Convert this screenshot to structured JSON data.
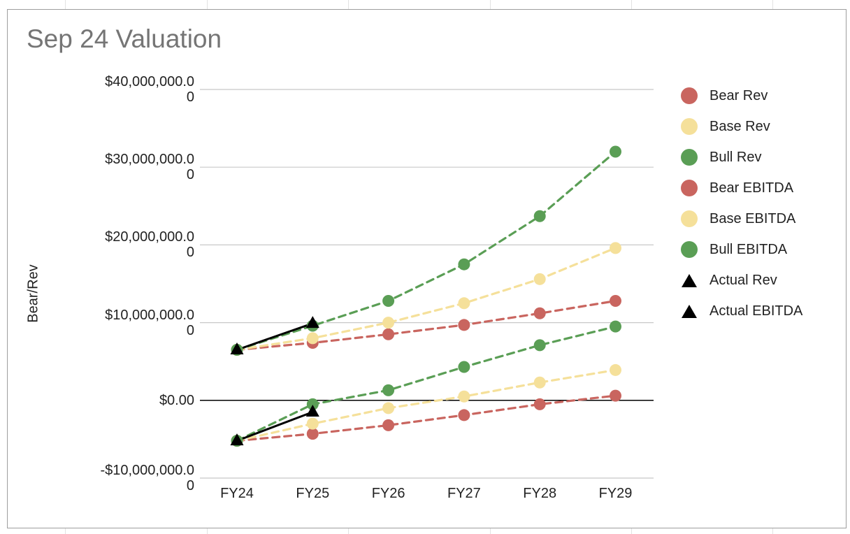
{
  "colors": {
    "bear": "#c9655f",
    "base": "#f5e09a",
    "bull": "#5a9e55",
    "actual": "#000000",
    "gridline": "#c8c8c8",
    "zeroline": "#000000"
  },
  "chart_data": {
    "type": "line",
    "title": "Sep 24 Valuation",
    "xlabel": "",
    "ylabel": "Bear/Rev",
    "categories": [
      "FY24",
      "FY25",
      "FY26",
      "FY27",
      "FY28",
      "FY29"
    ],
    "ylim": [
      -10000000,
      40000000
    ],
    "y_ticks": [
      {
        "value": 40000000,
        "line1": "$40,000,000.0",
        "line2": "0"
      },
      {
        "value": 30000000,
        "line1": "$30,000,000.0",
        "line2": "0"
      },
      {
        "value": 20000000,
        "line1": "$20,000,000.0",
        "line2": "0"
      },
      {
        "value": 10000000,
        "line1": "$10,000,000.0",
        "line2": "0"
      },
      {
        "value": 0,
        "line1": "$0.00",
        "line2": ""
      },
      {
        "value": -10000000,
        "line1": "-$10,000,000.0",
        "line2": "0"
      }
    ],
    "grid": true,
    "legend_position": "right",
    "series": [
      {
        "name": "Bear Rev",
        "key": "bear",
        "marker": "circle",
        "line": "dashed",
        "values": [
          6500000,
          7400000,
          8500000,
          9700000,
          11200000,
          12800000
        ]
      },
      {
        "name": "Base Rev",
        "key": "base",
        "marker": "circle",
        "line": "dashed",
        "values": [
          6500000,
          8000000,
          10000000,
          12500000,
          15600000,
          19600000
        ]
      },
      {
        "name": "Bull Rev",
        "key": "bull",
        "marker": "circle",
        "line": "dashed",
        "values": [
          6500000,
          9600000,
          12800000,
          17500000,
          23700000,
          32000000
        ]
      },
      {
        "name": "Bear EBITDA",
        "key": "bear",
        "marker": "circle",
        "line": "dashed",
        "values": [
          -5200000,
          -4300000,
          -3200000,
          -1900000,
          -500000,
          600000
        ]
      },
      {
        "name": "Base EBITDA",
        "key": "base",
        "marker": "circle",
        "line": "dashed",
        "values": [
          -5200000,
          -3000000,
          -1000000,
          500000,
          2300000,
          3900000
        ]
      },
      {
        "name": "Bull EBITDA",
        "key": "bull",
        "marker": "circle",
        "line": "dashed",
        "values": [
          -5200000,
          -500000,
          1300000,
          4300000,
          7100000,
          9500000
        ]
      },
      {
        "name": "Actual Rev",
        "key": "actual",
        "marker": "triangle",
        "line": "solid",
        "values": [
          6500000,
          9900000,
          null,
          null,
          null,
          null
        ]
      },
      {
        "name": "Actual EBITDA",
        "key": "actual",
        "marker": "triangle",
        "line": "solid",
        "values": [
          -5200000,
          -1500000,
          null,
          null,
          null,
          null
        ]
      }
    ]
  }
}
